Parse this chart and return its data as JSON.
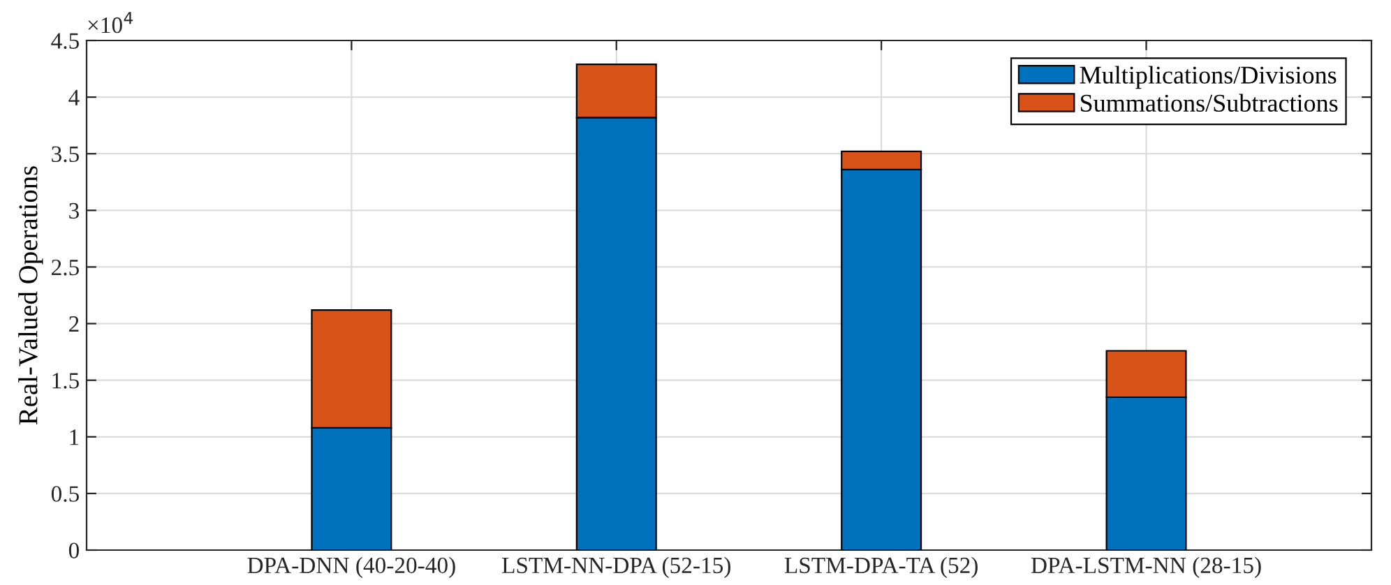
{
  "chart_data": {
    "type": "bar",
    "stacked": true,
    "categories": [
      "DPA-DNN (40-20-40)",
      "LSTM-NN-DPA (52-15)",
      "LSTM-DPA-TA (52)",
      "DPA-LSTM-NN (28-15)"
    ],
    "series": [
      {
        "name": "Multiplications/Divisions",
        "color": "#0072bd",
        "values": [
          1.08,
          3.82,
          3.36,
          1.35
        ]
      },
      {
        "name": "Summations/Subtractions",
        "color": "#d95319",
        "values": [
          1.04,
          0.47,
          0.16,
          0.41
        ]
      }
    ],
    "ylabel": "Real-Valued Operations",
    "ylim": [
      0,
      4.5
    ],
    "yticks": [
      0,
      0.5,
      1,
      1.5,
      2,
      2.5,
      3,
      3.5,
      4,
      4.5
    ],
    "annotations": [
      "×10$^{4}$"
    ],
    "grid": true,
    "legend": "top right"
  }
}
